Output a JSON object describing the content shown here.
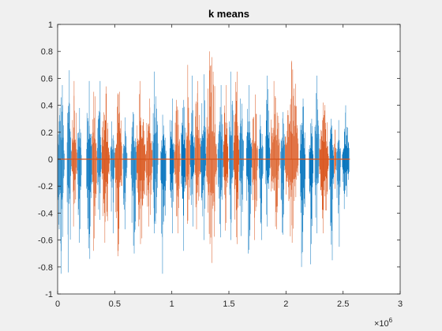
{
  "chart_data": {
    "type": "line",
    "title": "k means",
    "xlabel": "",
    "ylabel": "",
    "xlim": [
      0,
      3000000
    ],
    "ylim": [
      -1,
      1
    ],
    "x_ticks": [
      0,
      500000,
      1000000,
      1500000,
      2000000,
      2500000,
      3000000
    ],
    "x_tick_labels": [
      "0",
      "0.5",
      "1",
      "1.5",
      "2",
      "2.5",
      "3"
    ],
    "x_exponent_label": "×10",
    "x_exponent_power": "6",
    "y_ticks": [
      -1,
      -0.8,
      -0.6,
      -0.4,
      -0.2,
      0,
      0.2,
      0.4,
      0.6,
      0.8,
      1
    ],
    "y_tick_labels": [
      "-1",
      "-0.8",
      "-0.6",
      "-0.4",
      "-0.2",
      "0",
      "0.2",
      "0.4",
      "0.6",
      "0.8",
      "1"
    ],
    "grid": false,
    "legend": "none",
    "signal_end_x": 2560000,
    "series": [
      {
        "color": "#0072BD",
        "bursts": [
          {
            "x0": 0,
            "x1": 60000,
            "peak_pos": 0.55,
            "peak_neg": -0.85
          },
          {
            "x0": 80000,
            "x1": 120000,
            "peak_pos": 0.66,
            "peak_neg": -0.84
          },
          {
            "x0": 170000,
            "x1": 210000,
            "peak_pos": 0.38,
            "peak_neg": -0.62
          },
          {
            "x0": 250000,
            "x1": 300000,
            "peak_pos": 0.58,
            "peak_neg": -0.74
          },
          {
            "x0": 345000,
            "x1": 385000,
            "peak_pos": 0.58,
            "peak_neg": -0.45
          },
          {
            "x0": 460000,
            "x1": 500000,
            "peak_pos": 0.28,
            "peak_neg": -0.55
          },
          {
            "x0": 570000,
            "x1": 610000,
            "peak_pos": 0.31,
            "peak_neg": -0.52
          },
          {
            "x0": 640000,
            "x1": 690000,
            "peak_pos": 0.35,
            "peak_neg": -0.7
          },
          {
            "x0": 830000,
            "x1": 880000,
            "peak_pos": 0.65,
            "peak_neg": -0.55
          },
          {
            "x0": 900000,
            "x1": 950000,
            "peak_pos": 0.33,
            "peak_neg": -0.85
          },
          {
            "x0": 980000,
            "x1": 1020000,
            "peak_pos": 0.45,
            "peak_neg": -0.55
          },
          {
            "x0": 1080000,
            "x1": 1120000,
            "peak_pos": 0.44,
            "peak_neg": -0.68
          },
          {
            "x0": 1160000,
            "x1": 1200000,
            "peak_pos": 0.62,
            "peak_neg": -0.5
          },
          {
            "x0": 1250000,
            "x1": 1300000,
            "peak_pos": 0.63,
            "peak_neg": -0.6
          },
          {
            "x0": 1400000,
            "x1": 1450000,
            "peak_pos": 0.55,
            "peak_neg": -0.58
          },
          {
            "x0": 1500000,
            "x1": 1540000,
            "peak_pos": 0.65,
            "peak_neg": -0.6
          },
          {
            "x0": 1590000,
            "x1": 1630000,
            "peak_pos": 0.45,
            "peak_neg": -0.57
          },
          {
            "x0": 1650000,
            "x1": 1700000,
            "peak_pos": 0.55,
            "peak_neg": -0.7
          },
          {
            "x0": 1760000,
            "x1": 1800000,
            "peak_pos": 0.33,
            "peak_neg": -0.6
          },
          {
            "x0": 1820000,
            "x1": 1860000,
            "peak_pos": 0.62,
            "peak_neg": -0.5
          },
          {
            "x0": 1950000,
            "x1": 1990000,
            "peak_pos": 0.35,
            "peak_neg": -0.56
          },
          {
            "x0": 2120000,
            "x1": 2170000,
            "peak_pos": 0.45,
            "peak_neg": -0.8
          },
          {
            "x0": 2200000,
            "x1": 2240000,
            "peak_pos": 0.3,
            "peak_neg": -0.78
          },
          {
            "x0": 2250000,
            "x1": 2290000,
            "peak_pos": 0.62,
            "peak_neg": -0.55
          },
          {
            "x0": 2380000,
            "x1": 2420000,
            "peak_pos": 0.3,
            "peak_neg": -0.75
          },
          {
            "x0": 2440000,
            "x1": 2480000,
            "peak_pos": 0.29,
            "peak_neg": -0.65
          },
          {
            "x0": 2490000,
            "x1": 2555000,
            "peak_pos": 0.4,
            "peak_neg": -0.37
          }
        ]
      },
      {
        "color": "#D95319",
        "bursts": [
          {
            "x0": 120000,
            "x1": 170000,
            "peak_pos": 0.58,
            "peak_neg": -0.5
          },
          {
            "x0": 300000,
            "x1": 345000,
            "peak_pos": 0.5,
            "peak_neg": -0.68
          },
          {
            "x0": 385000,
            "x1": 455000,
            "peak_pos": 0.54,
            "peak_neg": -0.62
          },
          {
            "x0": 500000,
            "x1": 565000,
            "peak_pos": 0.5,
            "peak_neg": -0.72
          },
          {
            "x0": 690000,
            "x1": 770000,
            "peak_pos": 0.58,
            "peak_neg": -0.63
          },
          {
            "x0": 770000,
            "x1": 830000,
            "peak_pos": 0.45,
            "peak_neg": -0.5
          },
          {
            "x0": 1020000,
            "x1": 1075000,
            "peak_pos": 0.44,
            "peak_neg": -0.55
          },
          {
            "x0": 1120000,
            "x1": 1160000,
            "peak_pos": 0.7,
            "peak_neg": -0.48
          },
          {
            "x0": 1200000,
            "x1": 1250000,
            "peak_pos": 0.58,
            "peak_neg": -0.52
          },
          {
            "x0": 1300000,
            "x1": 1395000,
            "peak_pos": 0.8,
            "peak_neg": -0.77
          },
          {
            "x0": 1450000,
            "x1": 1495000,
            "peak_pos": 0.55,
            "peak_neg": -0.53
          },
          {
            "x0": 1540000,
            "x1": 1590000,
            "peak_pos": 0.65,
            "peak_neg": -0.63
          },
          {
            "x0": 1700000,
            "x1": 1755000,
            "peak_pos": 0.48,
            "peak_neg": -0.6
          },
          {
            "x0": 1860000,
            "x1": 1945000,
            "peak_pos": 0.58,
            "peak_neg": -0.52
          },
          {
            "x0": 1990000,
            "x1": 2110000,
            "peak_pos": 0.73,
            "peak_neg": -0.62
          },
          {
            "x0": 2290000,
            "x1": 2375000,
            "peak_pos": 0.42,
            "peak_neg": -0.55
          },
          {
            "x0": 2420000,
            "x1": 2440000,
            "peak_pos": 0.22,
            "peak_neg": -0.22
          }
        ]
      }
    ]
  }
}
